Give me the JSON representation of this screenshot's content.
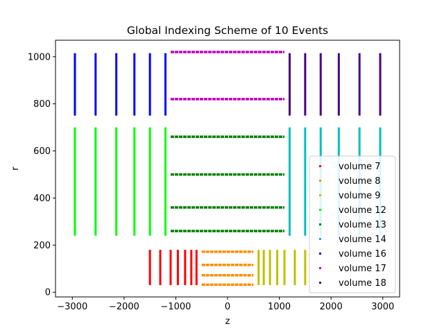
{
  "chart_data": {
    "type": "scatter",
    "title": "Global Indexing Scheme of 10 Events",
    "xlabel": "z",
    "ylabel": "r",
    "xlim": [
      -3325,
      3325
    ],
    "ylim": [
      -20,
      1070
    ],
    "xticks": [
      -3000,
      -2000,
      -1000,
      0,
      1000,
      2000,
      3000
    ],
    "xtick_labels": [
      "−3000",
      "−2000",
      "−1000",
      "0",
      "1000",
      "2000",
      "3000"
    ],
    "yticks": [
      0,
      200,
      400,
      600,
      800,
      1000
    ],
    "ytick_labels": [
      "0",
      "200",
      "400",
      "600",
      "800",
      "1000"
    ],
    "grid": false,
    "legend_position": "lower-right",
    "series": [
      {
        "name": "volume 7",
        "color": "#ff0000",
        "orientation": "vertical",
        "z": [
          -1500,
          -1300,
          -1100,
          -960,
          -820,
          -700,
          -600
        ],
        "r_range": [
          30,
          180
        ]
      },
      {
        "name": "volume 8",
        "color": "#ff8c00",
        "orientation": "horizontal",
        "r": [
          32,
          72,
          116,
          172
        ],
        "z_range": [
          -500,
          500
        ]
      },
      {
        "name": "volume 9",
        "color": "#bfbf00",
        "orientation": "vertical",
        "z": [
          600,
          700,
          820,
          960,
          1100,
          1300,
          1500
        ],
        "r_range": [
          30,
          180
        ]
      },
      {
        "name": "volume 12",
        "color": "#00ff00",
        "orientation": "vertical",
        "z": [
          -2950,
          -2550,
          -2150,
          -1800,
          -1500,
          -1200
        ],
        "r_range": [
          240,
          700
        ]
      },
      {
        "name": "volume 13",
        "color": "#008000",
        "orientation": "horizontal",
        "r": [
          260,
          360,
          500,
          660
        ],
        "z_range": [
          -1100,
          1100
        ]
      },
      {
        "name": "volume 14",
        "color": "#00bfbf",
        "orientation": "vertical",
        "z": [
          1200,
          1500,
          1800,
          2150,
          2550,
          2950
        ],
        "r_range": [
          240,
          700
        ]
      },
      {
        "name": "volume 16",
        "color": "#0000ff",
        "orientation": "vertical",
        "z": [
          -2950,
          -2550,
          -2150,
          -1800,
          -1500,
          -1200
        ],
        "r_range": [
          750,
          1015
        ]
      },
      {
        "name": "volume 17",
        "color": "#bf00bf",
        "orientation": "horizontal",
        "r": [
          820,
          1020
        ],
        "z_range": [
          -1100,
          1100
        ]
      },
      {
        "name": "volume 18",
        "color": "#4b0082",
        "orientation": "vertical",
        "z": [
          1200,
          1500,
          1800,
          2150,
          2550,
          2950
        ],
        "r_range": [
          750,
          1015
        ]
      }
    ]
  }
}
